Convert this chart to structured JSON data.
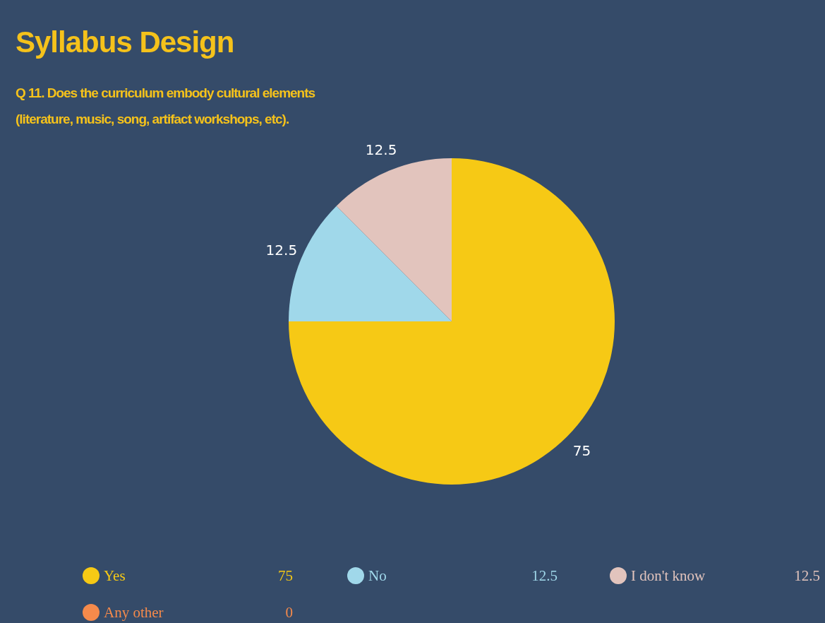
{
  "chart_data": {
    "type": "pie",
    "title": "Syllabus Design",
    "subtitle": "Q 11. Does the curriculum embody cultural elements\n(literature, music, song, artifact workshops, etc).",
    "categories": [
      "Yes",
      "No",
      "I don't know",
      "Any other"
    ],
    "values": [
      75,
      12.5,
      12.5,
      0
    ],
    "colors": [
      "#f6c915",
      "#a0d8ea",
      "#e2c4bd",
      "#f58a4b"
    ],
    "value_labels": [
      "75",
      "12.5",
      "12.5",
      "0"
    ],
    "legend": "bottom"
  }
}
